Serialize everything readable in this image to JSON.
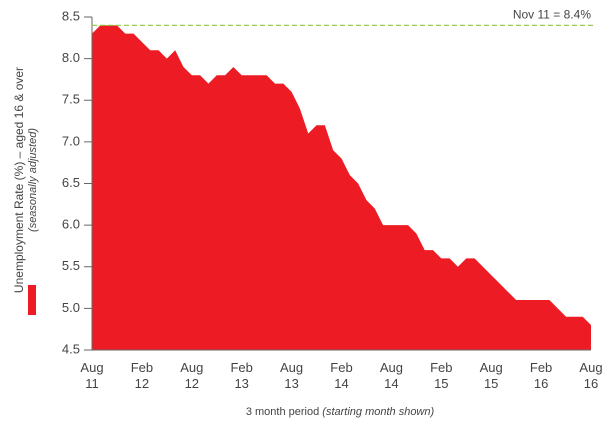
{
  "chart_data": {
    "type": "area",
    "y_label": "Unemployment Rate (%) – aged 16 & over",
    "y_label_note": "(seasonally adjusted)",
    "x_label": "3 month period",
    "x_label_note": "(starting month shown)",
    "categories": [
      "Aug 11",
      null,
      null,
      null,
      null,
      null,
      "Feb 12",
      null,
      null,
      null,
      null,
      null,
      "Aug 12",
      null,
      null,
      null,
      null,
      null,
      "Feb 13",
      null,
      null,
      null,
      null,
      null,
      "Aug 13",
      null,
      null,
      null,
      null,
      null,
      "Feb 14",
      null,
      null,
      null,
      null,
      null,
      "Aug 14",
      null,
      null,
      null,
      null,
      null,
      "Feb 15",
      null,
      null,
      null,
      null,
      null,
      "Aug 15",
      null,
      null,
      null,
      null,
      null,
      "Feb 16",
      null,
      null,
      null,
      null,
      null,
      "Aug 16"
    ],
    "series": [
      {
        "name": null,
        "color": "#ed1c24",
        "values": [
          8.3,
          8.4,
          8.4,
          8.4,
          8.3,
          8.3,
          8.2,
          8.1,
          8.1,
          8.0,
          8.1,
          7.9,
          7.8,
          7.8,
          7.7,
          7.8,
          7.8,
          7.9,
          7.8,
          7.8,
          7.8,
          7.8,
          7.7,
          7.7,
          7.6,
          7.4,
          7.1,
          7.2,
          7.2,
          6.9,
          6.8,
          6.6,
          6.5,
          6.3,
          6.2,
          6.0,
          6.0,
          6.0,
          6.0,
          5.9,
          5.7,
          5.7,
          5.6,
          5.6,
          5.5,
          5.6,
          5.6,
          5.5,
          5.4,
          5.3,
          5.2,
          5.1,
          5.1,
          5.1,
          5.1,
          5.1,
          5.0,
          4.9,
          4.9,
          4.9,
          4.8
        ]
      }
    ],
    "reference_line": {
      "value": 8.4,
      "label": "Nov 11 = 8.4%",
      "color": "#8dc63f"
    },
    "ylim": [
      4.5,
      8.5
    ],
    "yticks": [
      {
        "value": 4.5,
        "label": "4.5"
      },
      {
        "value": 5,
        "label": "5.0"
      },
      {
        "value": 5.5,
        "label": "5.5"
      },
      {
        "value": 6,
        "label": "6.0"
      },
      {
        "value": 6.5,
        "label": "6.5"
      },
      {
        "value": 7,
        "label": "7.0"
      },
      {
        "value": 7.5,
        "label": "7.5"
      },
      {
        "value": 8,
        "label": "8.0"
      },
      {
        "value": 8.5,
        "label": "8.5"
      }
    ]
  }
}
